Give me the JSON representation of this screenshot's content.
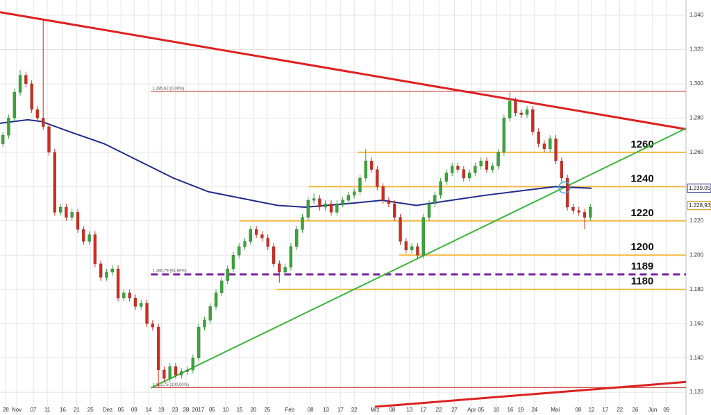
{
  "chart_data": {
    "type": "candlestick",
    "up_color": "#34a834",
    "down_color": "#d42a1e",
    "xlim": [
      -0.5,
      118.6
    ],
    "ylim": [
      1.1067,
      1.3489
    ],
    "grid": true,
    "yticks": [
      {
        "value": 1.12,
        "label": "1.120"
      },
      {
        "value": 1.14,
        "label": "1.140"
      },
      {
        "value": 1.16,
        "label": "1.160"
      },
      {
        "value": 1.18,
        "label": "1.180"
      },
      {
        "value": 1.2,
        "label": "1.200"
      },
      {
        "value": 1.22,
        "label": "1.220"
      },
      {
        "value": 1.24,
        "label": "1.240"
      },
      {
        "value": 1.26,
        "label": "1.260"
      },
      {
        "value": 1.28,
        "label": "1.280"
      },
      {
        "value": 1.3,
        "label": "1.300"
      },
      {
        "value": 1.32,
        "label": "1.320"
      },
      {
        "value": 1.34,
        "label": "1.340"
      }
    ],
    "xticks": [
      {
        "value": 0.5,
        "label": "28"
      },
      {
        "value": 2.4,
        "label": "Nov"
      },
      {
        "value": 5.3,
        "label": "07"
      },
      {
        "value": 7.7,
        "label": "11"
      },
      {
        "value": 10.4,
        "label": "16"
      },
      {
        "value": 12.8,
        "label": "21"
      },
      {
        "value": 15.2,
        "label": "25"
      },
      {
        "value": 18.2,
        "label": "Dez"
      },
      {
        "value": 20.5,
        "label": "05"
      },
      {
        "value": 22.8,
        "label": "09"
      },
      {
        "value": 25.3,
        "label": "14"
      },
      {
        "value": 27.5,
        "label": "19"
      },
      {
        "value": 29.9,
        "label": "23"
      },
      {
        "value": 31.8,
        "label": "28"
      },
      {
        "value": 33.9,
        "label": "2017"
      },
      {
        "value": 36.3,
        "label": "05"
      },
      {
        "value": 38.7,
        "label": "10"
      },
      {
        "value": 41.1,
        "label": "15"
      },
      {
        "value": 43.5,
        "label": "20"
      },
      {
        "value": 45.9,
        "label": "25"
      },
      {
        "value": 49.8,
        "label": "Feb"
      },
      {
        "value": 53.4,
        "label": "08"
      },
      {
        "value": 56.1,
        "label": "13"
      },
      {
        "value": 58.6,
        "label": "17"
      },
      {
        "value": 61,
        "label": "22"
      },
      {
        "value": 64.6,
        "label": "Mrz"
      },
      {
        "value": 67.6,
        "label": "08"
      },
      {
        "value": 70.6,
        "label": "13"
      },
      {
        "value": 73,
        "label": "17"
      },
      {
        "value": 75.7,
        "label": "22"
      },
      {
        "value": 78.4,
        "label": "27"
      },
      {
        "value": 81.4,
        "label": "Apr"
      },
      {
        "value": 83,
        "label": "05"
      },
      {
        "value": 85.7,
        "label": "10"
      },
      {
        "value": 88.1,
        "label": "16"
      },
      {
        "value": 89.9,
        "label": "19"
      },
      {
        "value": 92.3,
        "label": "24"
      },
      {
        "value": 95.9,
        "label": "Mai"
      },
      {
        "value": 99.9,
        "label": "08"
      },
      {
        "value": 102.2,
        "label": "12"
      },
      {
        "value": 104.6,
        "label": "17"
      },
      {
        "value": 107.1,
        "label": "22"
      },
      {
        "value": 109.8,
        "label": "26"
      },
      {
        "value": 112.8,
        "label": "Jun"
      },
      {
        "value": 115.2,
        "label": "09"
      }
    ],
    "candles": [
      [
        1.265,
        1.272,
        1.263,
        1.27
      ],
      [
        1.27,
        1.282,
        1.268,
        1.28
      ],
      [
        1.28,
        1.297,
        1.278,
        1.295
      ],
      [
        1.295,
        1.308,
        1.293,
        1.305
      ],
      [
        1.305,
        1.307,
        1.298,
        1.3
      ],
      [
        1.3,
        1.302,
        1.283,
        1.285
      ],
      [
        1.285,
        1.287,
        1.278,
        1.28
      ],
      [
        1.28,
        1.338,
        1.273,
        1.275
      ],
      [
        1.275,
        1.277,
        1.258,
        1.26
      ],
      [
        1.26,
        1.262,
        1.223,
        1.225
      ],
      [
        1.225,
        1.23,
        1.223,
        1.228
      ],
      [
        1.228,
        1.23,
        1.22,
        1.222
      ],
      [
        1.222,
        1.227,
        1.22,
        1.225
      ],
      [
        1.225,
        1.227,
        1.213,
        1.215
      ],
      [
        1.215,
        1.217,
        1.206,
        1.208
      ],
      [
        1.208,
        1.214,
        1.206,
        1.212
      ],
      [
        1.212,
        1.214,
        1.193,
        1.195
      ],
      [
        1.195,
        1.197,
        1.185,
        1.187
      ],
      [
        1.187,
        1.192,
        1.185,
        1.19
      ],
      [
        1.19,
        1.194,
        1.188,
        1.192
      ],
      [
        1.192,
        1.194,
        1.173,
        1.175
      ],
      [
        1.175,
        1.18,
        1.173,
        1.178
      ],
      [
        1.178,
        1.18,
        1.173,
        1.175
      ],
      [
        1.175,
        1.177,
        1.168,
        1.17
      ],
      [
        1.17,
        1.174,
        1.168,
        1.172
      ],
      [
        1.172,
        1.174,
        1.158,
        1.16
      ],
      [
        1.16,
        1.162,
        1.156,
        1.158
      ],
      [
        1.158,
        1.16,
        1.123,
        1.133
      ],
      [
        1.133,
        1.135,
        1.126,
        1.128
      ],
      [
        1.128,
        1.137,
        1.126,
        1.135
      ],
      [
        1.135,
        1.137,
        1.128,
        1.13
      ],
      [
        1.13,
        1.134,
        1.128,
        1.132
      ],
      [
        1.132,
        1.135,
        1.13,
        1.133
      ],
      [
        1.133,
        1.142,
        1.131,
        1.14
      ],
      [
        1.14,
        1.16,
        1.138,
        1.158
      ],
      [
        1.158,
        1.164,
        1.156,
        1.162
      ],
      [
        1.162,
        1.172,
        1.16,
        1.17
      ],
      [
        1.17,
        1.18,
        1.168,
        1.178
      ],
      [
        1.178,
        1.187,
        1.176,
        1.185
      ],
      [
        1.185,
        1.194,
        1.183,
        1.192
      ],
      [
        1.192,
        1.202,
        1.19,
        1.2
      ],
      [
        1.2,
        1.207,
        1.198,
        1.205
      ],
      [
        1.205,
        1.21,
        1.203,
        1.208
      ],
      [
        1.208,
        1.217,
        1.206,
        1.215
      ],
      [
        1.215,
        1.217,
        1.21,
        1.212
      ],
      [
        1.212,
        1.214,
        1.208,
        1.21
      ],
      [
        1.21,
        1.212,
        1.203,
        1.205
      ],
      [
        1.205,
        1.207,
        1.193,
        1.195
      ],
      [
        1.195,
        1.197,
        1.184,
        1.19
      ],
      [
        1.19,
        1.195,
        1.188,
        1.193
      ],
      [
        1.193,
        1.207,
        1.191,
        1.205
      ],
      [
        1.205,
        1.217,
        1.203,
        1.215
      ],
      [
        1.215,
        1.224,
        1.213,
        1.222
      ],
      [
        1.222,
        1.234,
        1.22,
        1.232
      ],
      [
        1.232,
        1.236,
        1.23,
        1.233
      ],
      [
        1.233,
        1.235,
        1.226,
        1.228
      ],
      [
        1.228,
        1.232,
        1.226,
        1.23
      ],
      [
        1.23,
        1.232,
        1.223,
        1.225
      ],
      [
        1.225,
        1.232,
        1.223,
        1.23
      ],
      [
        1.23,
        1.234,
        1.228,
        1.232
      ],
      [
        1.232,
        1.237,
        1.23,
        1.235
      ],
      [
        1.235,
        1.239,
        1.233,
        1.237
      ],
      [
        1.237,
        1.247,
        1.235,
        1.245
      ],
      [
        1.245,
        1.262,
        1.243,
        1.255
      ],
      [
        1.255,
        1.257,
        1.248,
        1.25
      ],
      [
        1.25,
        1.252,
        1.238,
        1.24
      ],
      [
        1.24,
        1.242,
        1.23,
        1.232
      ],
      [
        1.232,
        1.234,
        1.228,
        1.23
      ],
      [
        1.23,
        1.232,
        1.22,
        1.222
      ],
      [
        1.222,
        1.224,
        1.206,
        1.208
      ],
      [
        1.208,
        1.21,
        1.201,
        1.203
      ],
      [
        1.203,
        1.207,
        1.201,
        1.205
      ],
      [
        1.205,
        1.207,
        1.198,
        1.2
      ],
      [
        1.2,
        1.224,
        1.198,
        1.222
      ],
      [
        1.222,
        1.232,
        1.22,
        1.23
      ],
      [
        1.23,
        1.237,
        1.228,
        1.235
      ],
      [
        1.235,
        1.245,
        1.233,
        1.243
      ],
      [
        1.243,
        1.25,
        1.241,
        1.248
      ],
      [
        1.248,
        1.254,
        1.246,
        1.252
      ],
      [
        1.252,
        1.254,
        1.248,
        1.25
      ],
      [
        1.25,
        1.252,
        1.243,
        1.245
      ],
      [
        1.245,
        1.25,
        1.243,
        1.248
      ],
      [
        1.248,
        1.254,
        1.246,
        1.252
      ],
      [
        1.252,
        1.257,
        1.25,
        1.255
      ],
      [
        1.255,
        1.257,
        1.248,
        1.25
      ],
      [
        1.25,
        1.254,
        1.248,
        1.252
      ],
      [
        1.252,
        1.262,
        1.25,
        1.26
      ],
      [
        1.26,
        1.282,
        1.258,
        1.28
      ],
      [
        1.28,
        1.295,
        1.278,
        1.29
      ],
      [
        1.29,
        1.292,
        1.281,
        1.283
      ],
      [
        1.283,
        1.285,
        1.28,
        1.282
      ],
      [
        1.282,
        1.287,
        1.28,
        1.285
      ],
      [
        1.285,
        1.287,
        1.27,
        1.272
      ],
      [
        1.272,
        1.274,
        1.263,
        1.265
      ],
      [
        1.265,
        1.267,
        1.26,
        1.262
      ],
      [
        1.262,
        1.27,
        1.26,
        1.268
      ],
      [
        1.268,
        1.27,
        1.253,
        1.255
      ],
      [
        1.255,
        1.257,
        1.243,
        1.245
      ],
      [
        1.245,
        1.247,
        1.226,
        1.228
      ],
      [
        1.228,
        1.23,
        1.224,
        1.226
      ],
      [
        1.226,
        1.228,
        1.223,
        1.225
      ],
      [
        1.225,
        1.227,
        1.215,
        1.222
      ],
      [
        1.222,
        1.23,
        1.22,
        1.228
      ]
    ],
    "moving_average": {
      "color": "#1f2a8c",
      "x": [
        -0.5,
        4.3,
        6.7,
        11.6,
        17.6,
        23.6,
        29.6,
        35.7,
        41.7,
        47.7,
        52.5,
        59.8,
        65.8,
        71.8,
        77.8,
        83.9,
        91.1,
        95.9,
        102.2
      ],
      "values": [
        1.277,
        1.279,
        1.278,
        1.272,
        1.265,
        1.255,
        1.245,
        1.237,
        1.233,
        1.229,
        1.228,
        1.23,
        1.232,
        1.229,
        1.232,
        1.235,
        1.238,
        1.24,
        1.239
      ]
    },
    "trendlines": [
      {
        "color": "#dd2020",
        "width": 3,
        "x": [
          -0.5,
          118.6
        ],
        "values": [
          1.3418,
          1.2735
        ]
      },
      {
        "color": "#dd2020",
        "width": 3,
        "x": [
          64.6,
          118.6
        ],
        "values": [
          1.1115,
          1.126
        ]
      },
      {
        "color": "#3cb43c",
        "width": 2,
        "x": [
          25.7,
          118.6
        ],
        "values": [
          1.1225,
          1.274
        ]
      }
    ],
    "levels": [
      {
        "value": 1.26,
        "label": "1260",
        "x0": 61.6,
        "color": "#f5b841"
      },
      {
        "value": 1.24,
        "label": "1240",
        "x0": 53.1,
        "color": "#f5b841"
      },
      {
        "value": 1.22,
        "label": "1220",
        "x0": 41.1,
        "color": "#f5b841"
      },
      {
        "value": 1.2,
        "label": "1200",
        "x0": 68.8,
        "color": "#f5b841"
      },
      {
        "value": 1.18879,
        "label": "1189",
        "x0": 25.7,
        "color": "#7a1fa2",
        "dashed": true,
        "note": "1.188,79 (61,80%)"
      },
      {
        "value": 1.18,
        "label": "1180",
        "x0": 47.5,
        "color": "#f5b841"
      }
    ],
    "fib_lines": [
      {
        "value": 1.29562,
        "note": "1.295,62 (0,00%)",
        "x0": 25.7,
        "color": "#c0221a"
      },
      {
        "value": 1.12275,
        "note": "1.122,75 (100,00%)",
        "x0": 25.7,
        "color": "#c0221a"
      }
    ],
    "price_tags": [
      {
        "value": 1.23905,
        "label": "1.239,05",
        "color": "#1f2a8c"
      },
      {
        "value": 1.22893,
        "label": "1.228,93",
        "color": "#d08a00"
      }
    ],
    "highlight": {
      "x": 97.5,
      "y": 1.2395,
      "color": "#3aa7e0"
    }
  }
}
